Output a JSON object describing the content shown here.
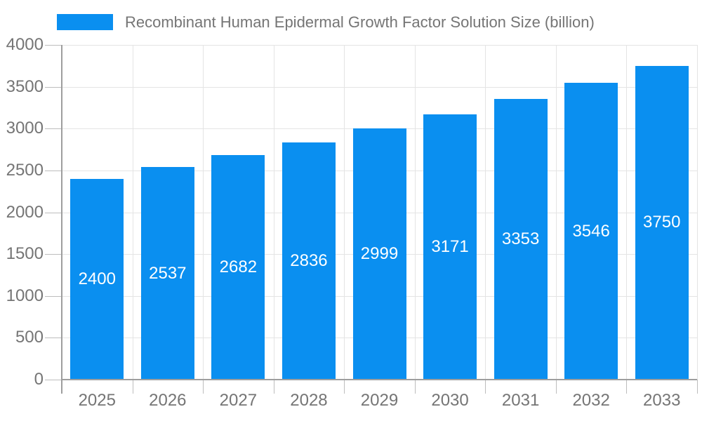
{
  "legend": {
    "label": "Recombinant Human Epidermal Growth Factor Solution Size (billion)"
  },
  "chart_data": {
    "type": "bar",
    "title": "Recombinant Human Epidermal Growth Factor Solution Size (billion)",
    "categories": [
      "2025",
      "2026",
      "2027",
      "2028",
      "2029",
      "2030",
      "2031",
      "2032",
      "2033"
    ],
    "values": [
      2400,
      2537,
      2682,
      2836,
      2999,
      3171,
      3353,
      3546,
      3750
    ],
    "value_labels_shown": true,
    "xlabel": "",
    "ylabel": "",
    "ylim": [
      0,
      4000
    ],
    "yticks": [
      0,
      500,
      1000,
      1500,
      2000,
      2500,
      3000,
      3500,
      4000
    ],
    "grid": true,
    "legend_position": "top-left",
    "colors": {
      "bar": "#0a8ff0",
      "value_label": "#ffffff",
      "axis_text": "#757575",
      "gridline": "#e4e4e4",
      "axis_line": "#9e9e9e",
      "tick": "#bdbdbd"
    }
  }
}
